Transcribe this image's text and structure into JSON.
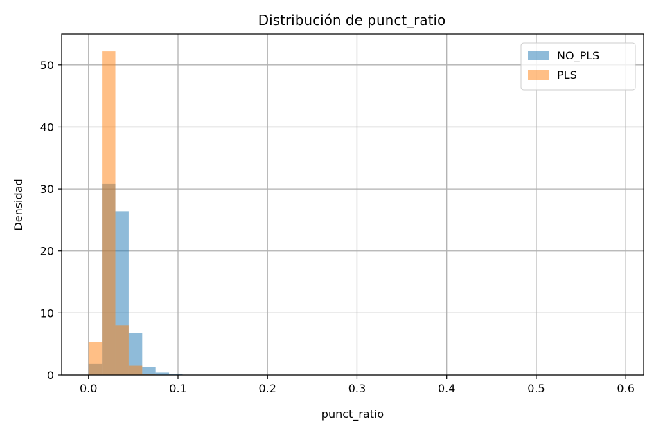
{
  "chart_data": {
    "type": "bar",
    "chart_kind": "histogram",
    "title": "Distribución de punct_ratio",
    "xlabel": "punct_ratio",
    "ylabel": "Densidad",
    "xlim": [
      -0.03,
      0.62
    ],
    "ylim": [
      0,
      55
    ],
    "xticks": [
      0.0,
      0.1,
      0.2,
      0.3,
      0.4,
      0.5,
      0.6
    ],
    "xtick_labels": [
      "0.0",
      "0.1",
      "0.2",
      "0.3",
      "0.4",
      "0.5",
      "0.6"
    ],
    "yticks": [
      0,
      10,
      20,
      30,
      40,
      50
    ],
    "ytick_labels": [
      "0",
      "10",
      "20",
      "30",
      "40",
      "50"
    ],
    "grid": true,
    "legend_position": "top-right",
    "bin_edges": [
      0.0,
      0.015,
      0.03,
      0.045,
      0.06,
      0.075,
      0.09,
      0.105,
      0.12
    ],
    "series": [
      {
        "name": "NO_PLS",
        "color": "#1f77b4",
        "alpha": 0.5,
        "values": [
          1.8,
          30.8,
          26.4,
          6.7,
          1.3,
          0.4,
          0.15,
          0.05
        ]
      },
      {
        "name": "PLS",
        "color": "#ff7f0e",
        "alpha": 0.5,
        "values": [
          5.3,
          52.2,
          8.0,
          1.5,
          0.1,
          0.0,
          0.0,
          0.0
        ]
      }
    ]
  }
}
